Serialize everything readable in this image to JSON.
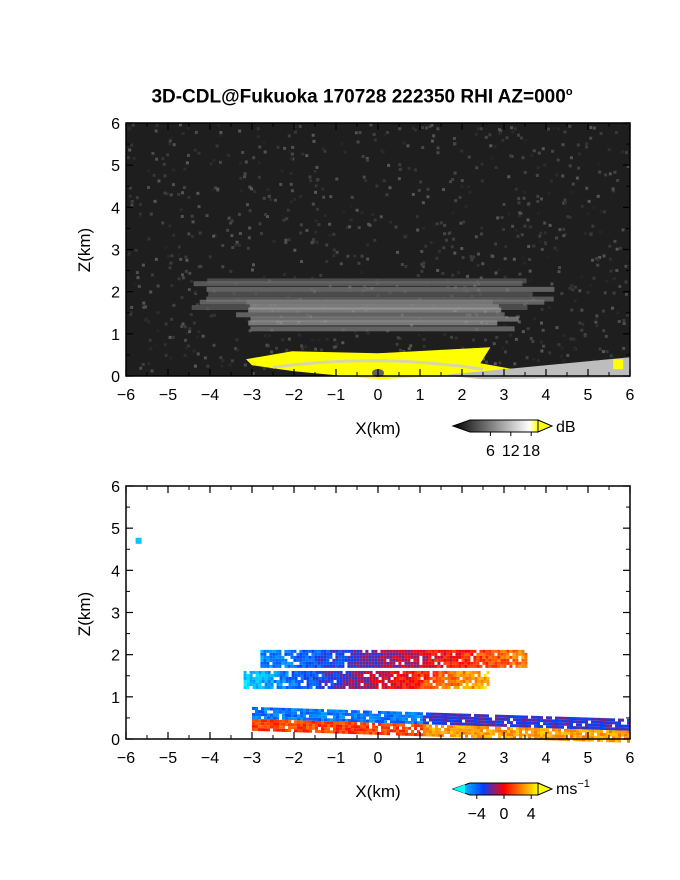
{
  "title": {
    "text": "3D-CDL@Fukuoka 170728 222350 RHI AZ=000",
    "degree_mark": "o"
  },
  "chart_data": [
    {
      "type": "heatmap",
      "panel": "top",
      "quantity_unit": "dB",
      "xlabel": "X(km)",
      "ylabel": "Z(km)",
      "xlim": [
        -6,
        6
      ],
      "ylim": [
        0,
        6
      ],
      "xticks": [
        "-6",
        "-5",
        "-4",
        "-3",
        "-2",
        "-1",
        "0",
        "1",
        "2",
        "3",
        "4",
        "5",
        "6"
      ],
      "yticks": [
        "0",
        "1",
        "2",
        "3",
        "4",
        "5",
        "6"
      ],
      "colorbar": {
        "unit_label": "dB",
        "tick_labels": [
          "6",
          "12",
          "18"
        ],
        "range": [
          0,
          20
        ],
        "colors": [
          "#000000",
          "#ffffff",
          "#ffff00"
        ]
      },
      "features": [
        {
          "layer": "aerosol layer",
          "z_km": 2.0,
          "x_range_km": [
            -4.5,
            3.8
          ],
          "level_db": 5
        },
        {
          "layer": "aerosol layer",
          "z_km": 1.5,
          "x_range_km": [
            -3.5,
            2.9
          ],
          "level_db": 8
        },
        {
          "layer": "near-surface saturated echo",
          "z_km": 0.35,
          "x_range_km": [
            -3.0,
            2.2
          ],
          "level_db": 20
        }
      ]
    },
    {
      "type": "heatmap",
      "panel": "bottom",
      "quantity_unit": "ms-1",
      "xlabel": "X(km)",
      "ylabel": "Z(km)",
      "xlim": [
        -6,
        6
      ],
      "ylim": [
        0,
        6
      ],
      "xticks": [
        "-6",
        "-5",
        "-4",
        "-3",
        "-2",
        "-1",
        "0",
        "1",
        "2",
        "3",
        "4",
        "5",
        "6"
      ],
      "yticks": [
        "0",
        "1",
        "2",
        "3",
        "4",
        "5",
        "6"
      ],
      "colorbar": {
        "unit_label": "ms",
        "unit_exponent": "−1",
        "tick_labels": [
          "−4",
          "0",
          "4"
        ],
        "range": [
          -5,
          5
        ],
        "colors": [
          "#00ffff",
          "#0040ff",
          "#ff0000",
          "#ffff00"
        ]
      },
      "features": [
        {
          "layer": "upper layer",
          "z_km": 1.9,
          "x_range_km": [
            -2.8,
            3.5
          ],
          "velocity_ms": [
            -3,
            3
          ]
        },
        {
          "layer": "middle layer",
          "z_km": 1.4,
          "x_range_km": [
            -3.2,
            2.6
          ],
          "velocity_ms": [
            -4,
            4
          ]
        },
        {
          "layer": "lower layer",
          "z_km": 0.5,
          "x_range_km": [
            -3.0,
            6.0
          ],
          "velocity_ms": [
            -2,
            2
          ]
        },
        {
          "layer": "isolated point",
          "z_km": 4.7,
          "x_km": -5.7,
          "velocity_ms": -4
        }
      ]
    }
  ]
}
